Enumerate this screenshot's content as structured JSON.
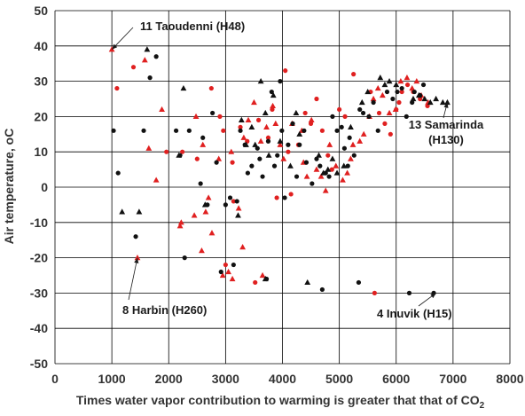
{
  "chart_data": {
    "type": "scatter",
    "xlabel": "Times water vapor contribution to warming is greater that that of CO",
    "xlabel_sub": "2",
    "ylabel": "Air temperature, ",
    "ylabel_unit": "oC",
    "xlim": [
      0,
      8000
    ],
    "ylim": [
      -50,
      50
    ],
    "x_ticks": [
      0,
      1000,
      2000,
      3000,
      4000,
      5000,
      6000,
      7000,
      8000
    ],
    "y_ticks": [
      -50,
      -40,
      -30,
      -20,
      -10,
      0,
      10,
      20,
      30,
      40,
      50
    ],
    "grid": true,
    "colors": {
      "red": "#e02020",
      "black": "#111111",
      "grid": "#000000"
    },
    "series": [
      {
        "marker": "circle",
        "color": "red",
        "points": [
          [
            1090,
            28
          ],
          [
            1380,
            34
          ],
          [
            1960,
            10
          ],
          [
            2240,
            10
          ],
          [
            2500,
            8
          ],
          [
            2750,
            28
          ],
          [
            2900,
            20
          ],
          [
            2960,
            16
          ],
          [
            3000,
            -22
          ],
          [
            3120,
            7
          ],
          [
            3140,
            -4
          ],
          [
            3260,
            17
          ],
          [
            3380,
            13
          ],
          [
            3520,
            -27
          ],
          [
            3580,
            19
          ],
          [
            3750,
            14
          ],
          [
            3820,
            22
          ],
          [
            3900,
            -3
          ],
          [
            4050,
            33
          ],
          [
            4100,
            10
          ],
          [
            4150,
            -2
          ],
          [
            4280,
            12
          ],
          [
            4400,
            21
          ],
          [
            4500,
            18
          ],
          [
            4600,
            25
          ],
          [
            4700,
            16
          ],
          [
            4800,
            9
          ],
          [
            4870,
            5
          ],
          [
            5000,
            22
          ],
          [
            5100,
            20
          ],
          [
            5250,
            32
          ],
          [
            5550,
            27
          ],
          [
            5620,
            -30
          ],
          [
            5700,
            21
          ],
          [
            5800,
            18
          ],
          [
            5900,
            15
          ],
          [
            6000,
            22
          ],
          [
            6050,
            24
          ],
          [
            6100,
            27
          ],
          [
            6200,
            29
          ],
          [
            6300,
            27
          ],
          [
            6420,
            25
          ],
          [
            6550,
            23
          ]
        ]
      },
      {
        "marker": "triangle",
        "color": "red",
        "points": [
          [
            1000,
            39
          ],
          [
            1580,
            36
          ],
          [
            1650,
            11
          ],
          [
            1780,
            2
          ],
          [
            1880,
            22
          ],
          [
            2200,
            -11
          ],
          [
            2220,
            -10
          ],
          [
            2450,
            -8
          ],
          [
            2480,
            20
          ],
          [
            2580,
            -18
          ],
          [
            2600,
            12
          ],
          [
            2650,
            -7
          ],
          [
            2700,
            -3
          ],
          [
            2760,
            -13
          ],
          [
            2880,
            8
          ],
          [
            2950,
            -25
          ],
          [
            3050,
            -24
          ],
          [
            3100,
            10
          ],
          [
            3120,
            -26
          ],
          [
            3230,
            -6
          ],
          [
            3300,
            -17
          ],
          [
            3320,
            14
          ],
          [
            3400,
            19
          ],
          [
            3500,
            24
          ],
          [
            3620,
            13
          ],
          [
            3650,
            -25
          ],
          [
            3720,
            17
          ],
          [
            3830,
            23
          ],
          [
            3880,
            18
          ],
          [
            3960,
            12
          ],
          [
            4020,
            8
          ],
          [
            4170,
            18
          ],
          [
            4340,
            16
          ],
          [
            4370,
            7
          ],
          [
            4430,
            3
          ],
          [
            4510,
            19
          ],
          [
            4600,
            5
          ],
          [
            4680,
            3
          ],
          [
            4760,
            -1
          ],
          [
            4830,
            12
          ],
          [
            4940,
            6
          ],
          [
            5060,
            2
          ],
          [
            5140,
            4
          ],
          [
            5200,
            8
          ],
          [
            5240,
            12
          ],
          [
            5360,
            13
          ],
          [
            5430,
            15
          ],
          [
            5530,
            20
          ],
          [
            5600,
            25
          ],
          [
            5680,
            28
          ],
          [
            5760,
            26
          ],
          [
            5880,
            21
          ],
          [
            5990,
            22
          ],
          [
            6080,
            30
          ],
          [
            6190,
            31
          ],
          [
            6280,
            28
          ],
          [
            6360,
            30
          ],
          [
            6440,
            26
          ],
          [
            6560,
            24
          ],
          [
            1450,
            -20
          ]
        ]
      },
      {
        "marker": "circle",
        "color": "black",
        "points": [
          [
            1030,
            16
          ],
          [
            1110,
            4
          ],
          [
            1420,
            -14
          ],
          [
            1560,
            16
          ],
          [
            1670,
            31
          ],
          [
            1780,
            37
          ],
          [
            2130,
            16
          ],
          [
            2200,
            9
          ],
          [
            2280,
            -20
          ],
          [
            2360,
            16
          ],
          [
            2560,
            1
          ],
          [
            2600,
            14
          ],
          [
            2680,
            -5
          ],
          [
            2770,
            21
          ],
          [
            2840,
            7
          ],
          [
            2920,
            -24
          ],
          [
            3000,
            -5
          ],
          [
            3080,
            -3
          ],
          [
            3140,
            -22
          ],
          [
            3200,
            -4
          ],
          [
            3260,
            16
          ],
          [
            3340,
            12
          ],
          [
            3390,
            4
          ],
          [
            3460,
            6
          ],
          [
            3560,
            11
          ],
          [
            3600,
            8
          ],
          [
            3650,
            3
          ],
          [
            3720,
            -26
          ],
          [
            3750,
            13
          ],
          [
            3810,
            27
          ],
          [
            3860,
            6
          ],
          [
            3910,
            9
          ],
          [
            3960,
            30
          ],
          [
            3990,
            16
          ],
          [
            4040,
            -3
          ],
          [
            4100,
            12
          ],
          [
            4180,
            18
          ],
          [
            4250,
            3
          ],
          [
            4300,
            12
          ],
          [
            4380,
            16
          ],
          [
            4420,
            7
          ],
          [
            4520,
            1
          ],
          [
            4600,
            8
          ],
          [
            4660,
            6
          ],
          [
            4700,
            -29
          ],
          [
            4760,
            4
          ],
          [
            4820,
            3
          ],
          [
            4880,
            20
          ],
          [
            4960,
            16
          ],
          [
            5040,
            17
          ],
          [
            5090,
            11
          ],
          [
            5150,
            6
          ],
          [
            5180,
            14
          ],
          [
            5260,
            9
          ],
          [
            5340,
            -27
          ],
          [
            5360,
            22
          ],
          [
            5420,
            21
          ],
          [
            5520,
            20
          ],
          [
            5600,
            24
          ],
          [
            5680,
            16
          ],
          [
            5840,
            27
          ],
          [
            5940,
            25
          ],
          [
            6020,
            27
          ],
          [
            6100,
            28
          ],
          [
            6180,
            20
          ],
          [
            6230,
            -30
          ],
          [
            6280,
            24
          ],
          [
            6320,
            27
          ],
          [
            6420,
            26
          ],
          [
            6480,
            29
          ],
          [
            6660,
            -30
          ]
        ]
      },
      {
        "marker": "triangle",
        "color": "black",
        "points": [
          [
            1180,
            -7
          ],
          [
            1480,
            -7
          ],
          [
            1620,
            39
          ],
          [
            2180,
            9
          ],
          [
            2260,
            28
          ],
          [
            2640,
            -5
          ],
          [
            3220,
            -8
          ],
          [
            3280,
            19
          ],
          [
            3360,
            12
          ],
          [
            3460,
            17
          ],
          [
            3520,
            12
          ],
          [
            3620,
            30
          ],
          [
            3700,
            21
          ],
          [
            3760,
            9
          ],
          [
            3840,
            26
          ],
          [
            3960,
            13
          ],
          [
            4140,
            6
          ],
          [
            4240,
            21
          ],
          [
            4300,
            15
          ],
          [
            4440,
            -27
          ],
          [
            4640,
            9
          ],
          [
            4720,
            4
          ],
          [
            4800,
            5
          ],
          [
            4880,
            8
          ],
          [
            4960,
            4
          ],
          [
            5080,
            6
          ],
          [
            5200,
            17
          ],
          [
            5400,
            24
          ],
          [
            5500,
            27
          ],
          [
            5720,
            31
          ],
          [
            5800,
            29
          ],
          [
            5880,
            30
          ],
          [
            6000,
            29
          ],
          [
            6300,
            25
          ],
          [
            6400,
            26
          ],
          [
            6500,
            25
          ],
          [
            6600,
            24
          ],
          [
            6700,
            25
          ],
          [
            6820,
            24
          ],
          [
            6900,
            24
          ],
          [
            3700,
            -26
          ]
        ]
      }
    ],
    "annotations": [
      {
        "lines": [
          "11 Taoudenni (H48)"
        ],
        "target": [
          1000,
          39
        ]
      },
      {
        "lines": [
          "13 Samarinda",
          "(H130)"
        ],
        "target": [
          6900,
          24
        ]
      },
      {
        "lines": [
          "8 Harbin (H260)"
        ],
        "target": [
          1450,
          -20
        ]
      },
      {
        "lines": [
          "4 Inuvik (H15)"
        ],
        "target": [
          6700,
          -30
        ]
      }
    ]
  }
}
